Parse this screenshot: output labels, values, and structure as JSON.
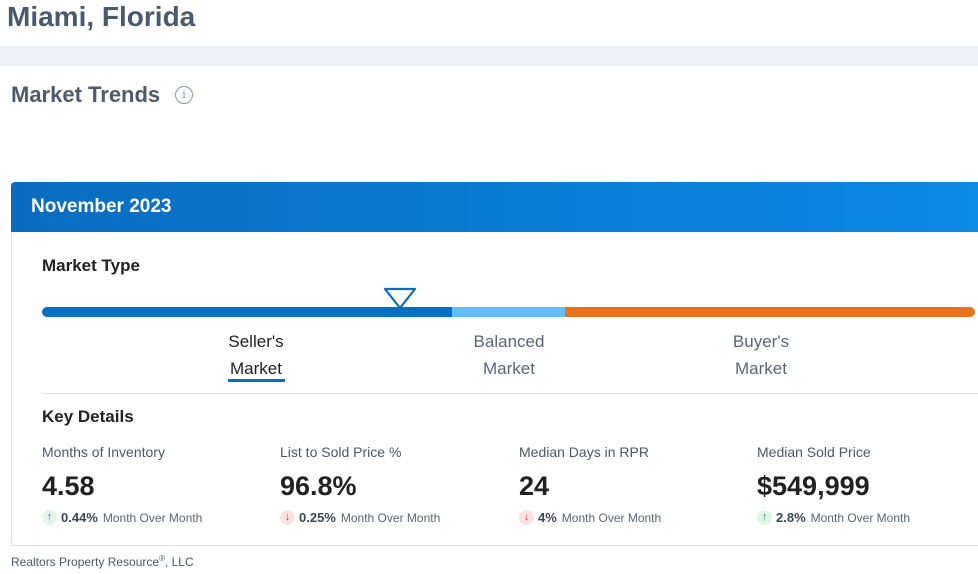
{
  "location_title": "Miami, Florida",
  "section_title": "Market Trends",
  "info_icon": "info-icon",
  "card": {
    "month": "November 2023",
    "market_type_label": "Market Type",
    "market_type_selected": "Seller's Market",
    "market_scale": [
      {
        "line1": "Seller's",
        "line2": "Market",
        "color": "#0070c0"
      },
      {
        "line1": "Balanced",
        "line2": "Market",
        "color": "#66bdfc"
      },
      {
        "line1": "Buyer's",
        "line2": "Market",
        "color": "#ea721d"
      }
    ],
    "key_details_label": "Key Details",
    "metrics": [
      {
        "label": "Months of Inventory",
        "value": "4.58",
        "direction": "up",
        "change": "0.44%",
        "period": "Month Over Month"
      },
      {
        "label": "List to Sold Price %",
        "value": "96.8%",
        "direction": "down",
        "change": "0.25%",
        "period": "Month Over Month"
      },
      {
        "label": "Median Days in RPR",
        "value": "24",
        "direction": "down",
        "change": "4%",
        "period": "Month Over Month"
      },
      {
        "label": "Median Sold Price",
        "value": "$549,999",
        "direction": "up",
        "change": "2.8%",
        "period": "Month Over Month"
      }
    ]
  },
  "footer": {
    "name": "Realtors Property Resource",
    "reg": "®",
    "suffix": ", LLC"
  }
}
